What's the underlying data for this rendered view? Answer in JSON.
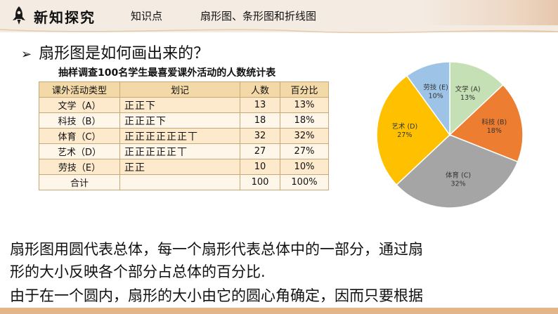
{
  "header": {
    "section_title": "新知探究",
    "kp_label": "知识点",
    "kp_topic": "扇形图、条形图和折线图"
  },
  "question": "扇形图是如何画出来的？",
  "table": {
    "title": "抽样调查100名学生最喜爱课外活动的人数统计表",
    "headers": [
      "课外活动类型",
      "划记",
      "人数",
      "百分比"
    ],
    "rows": [
      {
        "type": "文学（A）",
        "tally": "正正下",
        "count": "13",
        "percent": "13%"
      },
      {
        "type": "科技（B）",
        "tally": "正正正下",
        "count": "18",
        "percent": "18%"
      },
      {
        "type": "体育（C）",
        "tally": "正正正正正正丅",
        "count": "32",
        "percent": "32%"
      },
      {
        "type": "艺术（D）",
        "tally": "正正正正正丅",
        "count": "27",
        "percent": "27%"
      },
      {
        "type": "劳技（E）",
        "tally": "正正",
        "count": "10",
        "percent": "10%"
      }
    ],
    "total": {
      "type": "合计",
      "tally": "",
      "count": "100",
      "percent": "100%"
    }
  },
  "chart_data": {
    "type": "pie",
    "slices": [
      {
        "name": "文学 (A)",
        "value": 13,
        "label": "13%",
        "color": "#c5e0b4"
      },
      {
        "name": "科技 (B)",
        "value": 18,
        "label": "18%",
        "color": "#ed7d31"
      },
      {
        "name": "体育 (C)",
        "value": 32,
        "label": "32%",
        "color": "#a5a5a5"
      },
      {
        "name": "艺术 (D)",
        "value": 27,
        "label": "27%",
        "color": "#ffc000"
      },
      {
        "name": "劳技 (E)",
        "value": 10,
        "label": "10%",
        "color": "#9dc3e6"
      }
    ],
    "start": "12 o'clock",
    "direction": "clockwise"
  },
  "paragraphs": [
    "扇形图用圆代表总体，每一个扇形代表总体中的一部分，通过扇",
    "形的大小反映各个部分占总体的百分比.",
    "由于在一个圆内，扇形的大小由它的圆心角确定，因而只要根据"
  ],
  "colors": {
    "header_bg": "#f4ece3",
    "table_header": "#f3d9a8",
    "table_row_alt": "#fde9cc",
    "table_border": "#c7a876",
    "bottom_bar": "#e5b58a"
  }
}
